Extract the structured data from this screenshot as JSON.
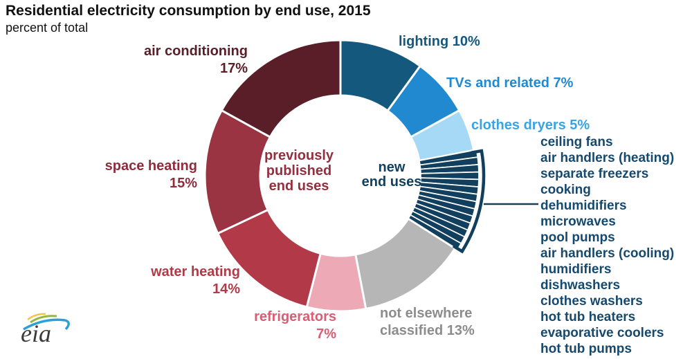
{
  "title": "Residential electricity consumption by end use, 2015",
  "subtitle": "percent of total",
  "logo": {
    "text": "eia"
  },
  "chart_data": {
    "type": "pie",
    "donut": true,
    "title": "Residential electricity consumption by end use, 2015",
    "units": "percent of total",
    "start_angle_deg": 0,
    "direction": "clockwise",
    "slices": [
      {
        "label": "lighting",
        "value": 10,
        "color": "#15587e"
      },
      {
        "label": "TVs and related",
        "value": 7,
        "color": "#2189cf"
      },
      {
        "label": "clothes dryers",
        "value": 5,
        "color": "#a6d9f5"
      },
      {
        "label": "new end uses",
        "value": 12,
        "color": "#123f5e",
        "segments": 14,
        "items": [
          "ceiling fans",
          "air handlers (heating)",
          "separate freezers",
          "cooking",
          "dehumidifiers",
          "microwaves",
          "pool pumps",
          "air handlers (cooling)",
          "humidifiers",
          "dishwashers",
          "clothes washers",
          "hot tub heaters",
          "evaporative coolers",
          "hot tub pumps"
        ]
      },
      {
        "label": "not elsewhere classified",
        "value": 13,
        "color": "#b7b6b6"
      },
      {
        "label": "refrigerators",
        "value": 7,
        "color": "#edaab6"
      },
      {
        "label": "water heating",
        "value": 14,
        "color": "#b23a48"
      },
      {
        "label": "space heating",
        "value": 15,
        "color": "#9b3442"
      },
      {
        "label": "air conditioning",
        "value": 17,
        "color": "#5a1e28"
      }
    ],
    "center_labels": {
      "left": "previously published end uses",
      "right": "new end uses"
    },
    "bracket_color": "#123f5e"
  },
  "labels": {
    "air_conditioning": {
      "text": "air conditioning\n17%",
      "color": "#5a1e28"
    },
    "space_heating": {
      "text": "space heating\n15%",
      "color": "#8e2c3c"
    },
    "water_heating": {
      "text": "water heating\n14%",
      "color": "#b23a48"
    },
    "refrigerators": {
      "text": "refrigerators\n7%",
      "color": "#d55f74"
    },
    "not_elsewhere": {
      "text": "not elsewhere\nclassified 13%",
      "color": "#8c8c8c"
    },
    "lighting": {
      "text": "lighting 10%",
      "color": "#15587e"
    },
    "tvs": {
      "text": "TVs and related 7%",
      "color": "#2189cf"
    },
    "clothes_dryers": {
      "text": "clothes dryers 5%",
      "color": "#3aa3e3"
    },
    "center_previous": {
      "text": "previously\npublished\nend uses",
      "color": "#952f3f"
    },
    "center_new": {
      "text": "new\nend uses",
      "color": "#123f5e"
    },
    "new_list_color": "#16496e"
  }
}
